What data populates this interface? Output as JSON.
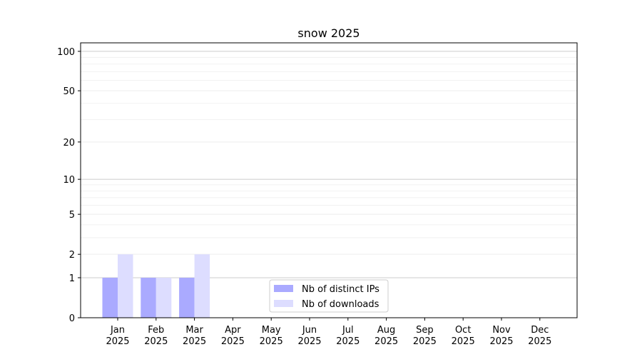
{
  "chart_data": {
    "type": "bar",
    "title": "snow 2025",
    "xlabel": "",
    "ylabel": "",
    "y_scale": "log(1+y)",
    "ylim": [
      0,
      116
    ],
    "grid": true,
    "legend_placement": "bottom-center",
    "categories": [
      "Jan\n2025",
      "Feb\n2025",
      "Mar\n2025",
      "Apr\n2025",
      "May\n2025",
      "Jun\n2025",
      "Jul\n2025",
      "Aug\n2025",
      "Sep\n2025",
      "Oct\n2025",
      "Nov\n2025",
      "Dec\n2025"
    ],
    "y_ticks": [
      0,
      1,
      2,
      5,
      10,
      20,
      50,
      100
    ],
    "series": [
      {
        "name": "Nb of distinct IPs",
        "color": "#aaaaff",
        "values": [
          1,
          1,
          1,
          0,
          0,
          0,
          0,
          0,
          0,
          0,
          0,
          0
        ]
      },
      {
        "name": "Nb of downloads",
        "color": "#ddddff",
        "values": [
          2,
          1,
          2,
          0,
          0,
          0,
          0,
          0,
          0,
          0,
          0,
          0
        ]
      }
    ]
  }
}
